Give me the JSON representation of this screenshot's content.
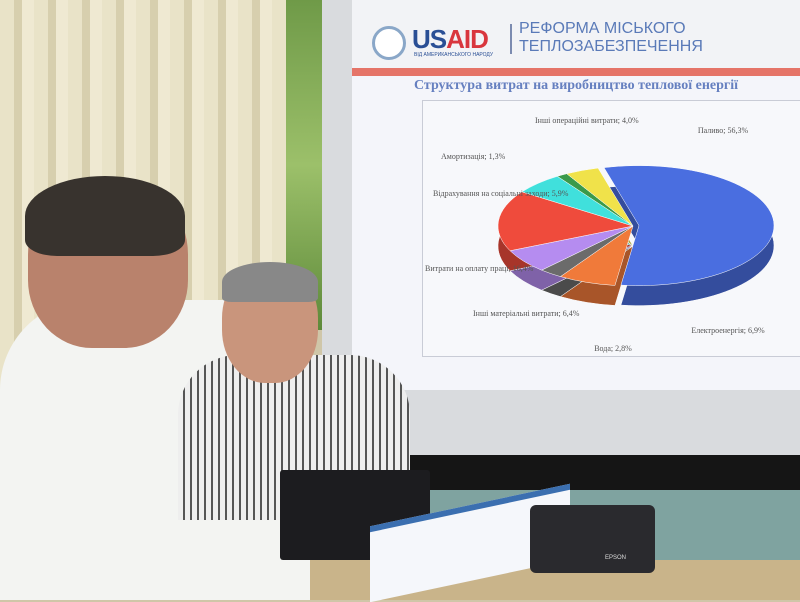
{
  "slide": {
    "logo": {
      "brand_us": "US",
      "brand_aid": "AID",
      "tagline": "ВІД АМЕРИКАНСЬКОГО НАРОДУ"
    },
    "program_line1": "РЕФОРМА МІСЬКОГО",
    "program_line2": "ТЕПЛОЗАБЕЗПЕЧЕННЯ",
    "title": "Структура витрат на виробництво теплової енергії"
  },
  "chart_data": {
    "type": "pie",
    "title": "Структура витрат на виробництво теплової енергії",
    "slices": [
      {
        "label": "Паливо; 56,3%",
        "value": 56.3,
        "color": "#4a6ee0"
      },
      {
        "label": "Електроенергія; 6,9%",
        "value": 6.9,
        "color": "#f07a3a"
      },
      {
        "label": "Вода; 2,8%",
        "value": 2.8,
        "color": "#6b6b6b"
      },
      {
        "label": "Інші матеріальні витрати; 6,4%",
        "value": 6.4,
        "color": "#b58cf0"
      },
      {
        "label": "Витрати на оплату праці; 16,4%",
        "value": 16.4,
        "color": "#ef4b3c"
      },
      {
        "label": "Відрахування на соціальні заходи; 5,9%",
        "value": 5.9,
        "color": "#40e0dc"
      },
      {
        "label": "Амортизація; 1,3%",
        "value": 1.3,
        "color": "#3a9a4a"
      },
      {
        "label": "Інші операційні витрати; 4,0%",
        "value": 4.0,
        "color": "#f0e24a"
      }
    ]
  },
  "projector": {
    "brand": "EPSON"
  }
}
